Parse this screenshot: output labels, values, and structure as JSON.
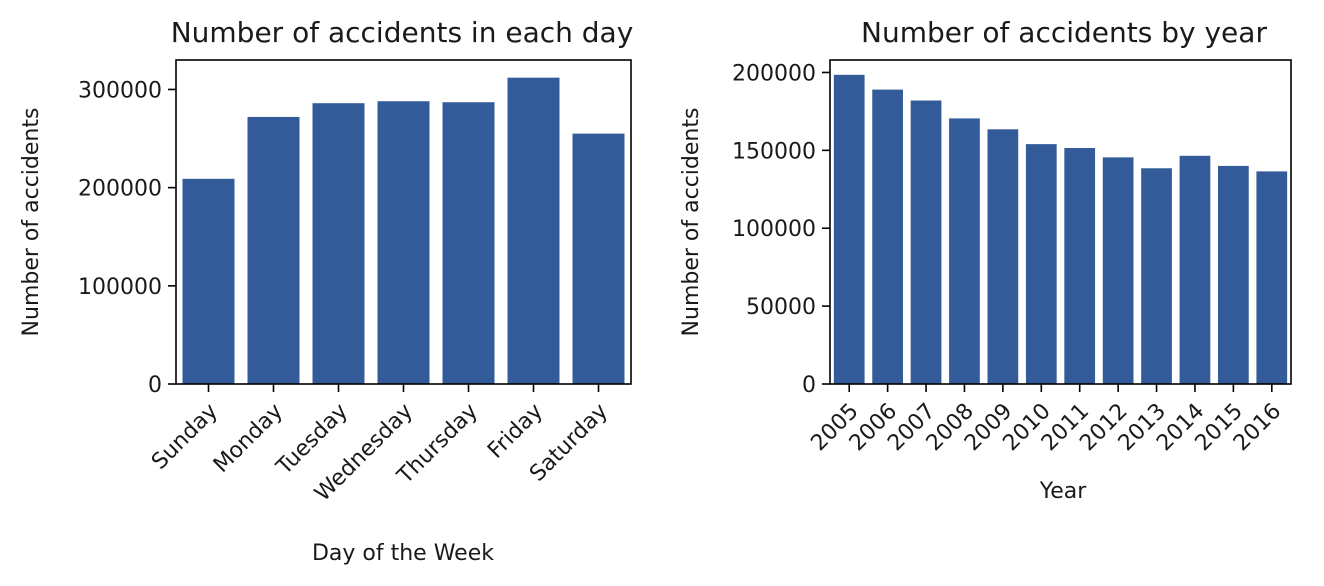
{
  "chart_data": [
    {
      "type": "bar",
      "title": "Number of accidents in each day",
      "xlabel": "Day of the Week",
      "ylabel": "Number of accidents",
      "categories": [
        "Sunday",
        "Monday",
        "Tuesday",
        "Wednesday",
        "Thursday",
        "Friday",
        "Saturday"
      ],
      "values": [
        209000,
        272000,
        286000,
        288000,
        287000,
        312000,
        255000
      ],
      "ylim": [
        0,
        330000
      ],
      "yticks": [
        0,
        100000,
        200000,
        300000
      ],
      "yticklabels": [
        "0",
        "100000",
        "200000",
        "300000"
      ],
      "xtick_rotation": 45,
      "bar_color": "#335b9a",
      "grid": false
    },
    {
      "type": "bar",
      "title": "Number of accidents by year",
      "xlabel": "Year",
      "ylabel": "Number of accidents",
      "categories": [
        "2005",
        "2006",
        "2007",
        "2008",
        "2009",
        "2010",
        "2011",
        "2012",
        "2013",
        "2014",
        "2015",
        "2016"
      ],
      "values": [
        198500,
        189000,
        182000,
        170500,
        163500,
        154000,
        151500,
        145500,
        138500,
        146500,
        140000,
        136500
      ],
      "ylim": [
        0,
        208000
      ],
      "yticks": [
        0,
        50000,
        100000,
        150000,
        200000
      ],
      "yticklabels": [
        "0",
        "50000",
        "100000",
        "150000",
        "200000"
      ],
      "xtick_rotation": 45,
      "bar_color": "#335b9a",
      "grid": false
    }
  ]
}
